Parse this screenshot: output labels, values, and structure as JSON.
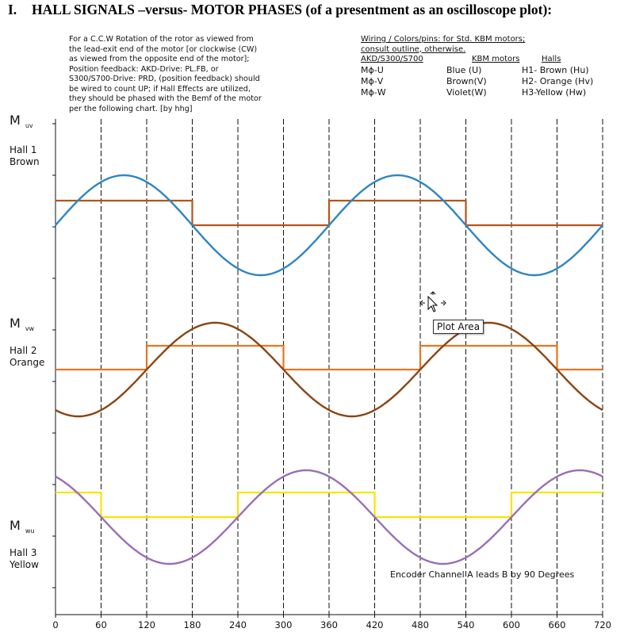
{
  "heading": {
    "number": "I.",
    "text": "HALL SIGNALS –versus- MOTOR PHASES (of a presentment as an oscilloscope plot):"
  },
  "note_lines": [
    "For a C.C.W Rotation of the rotor as viewed from",
    "the lead-exit end of the motor [or clockwise (CW)",
    "as viewed from the opposite end of the motor];",
    "Position feedback: AKD-Drive: PL.FB, or",
    "S300/S700-Drive: PRD, (position feedback) should",
    "be wired to count UP; if Hall Effects are utilized,",
    "they should be phased with the Bemf of the motor",
    "per the following chart. [by hhg]"
  ],
  "wiring": {
    "title_line1": "Wiring / Colors/pins: for Std. KBM motors;",
    "title_line2": "consult outline, otherwise.",
    "header": [
      "AKD/S300/S700",
      "KBM motors",
      "Halls"
    ],
    "rows": [
      [
        "Mϕ-U",
        "Blue (U)",
        "H1- Brown (Hu)"
      ],
      [
        "Mϕ-V",
        "Brown(V)",
        "H2- Orange (Hv)"
      ],
      [
        "Mϕ-W",
        "Violet(W)",
        "H3-Yellow (Hw)"
      ]
    ]
  },
  "tooltip": "Plot Area",
  "chart_data": {
    "type": "line",
    "x_ticks": [
      0,
      60,
      120,
      180,
      240,
      300,
      360,
      420,
      480,
      540,
      600,
      660,
      720
    ],
    "xlim": [
      0,
      720
    ],
    "grid": "vertical dashed lines every 60",
    "annotation": "Encoder Channel A leads B by 90 Degrees",
    "panels": [
      {
        "motor_label": "M",
        "motor_sub": "uv",
        "hall_label": [
          "Hall 1",
          "Brown"
        ],
        "sine": {
          "name": "M uv",
          "color": "#2E86C1",
          "phase_deg": 0,
          "amplitude": 1
        },
        "hall": {
          "name": "Hall 1",
          "color": "#B5541A",
          "high_intervals": [
            [
              0,
              180
            ],
            [
              360,
              540
            ]
          ]
        }
      },
      {
        "motor_label": "M",
        "motor_sub": "vw",
        "hall_label": [
          "Hall 2",
          "Orange"
        ],
        "sine": {
          "name": "M vw",
          "color": "#8B4513",
          "phase_deg": -120,
          "amplitude": 1
        },
        "hall": {
          "name": "Hall 2",
          "color": "#E8761E",
          "high_intervals": [
            [
              120,
              300
            ],
            [
              480,
              660
            ]
          ]
        }
      },
      {
        "motor_label": "M",
        "motor_sub": "wu",
        "hall_label": [
          "Hall 3",
          "Yellow"
        ],
        "sine": {
          "name": "M wu",
          "color": "#9B6FB5",
          "phase_deg": 120,
          "amplitude": 1
        },
        "hall": {
          "name": "Hall 3",
          "color": "#F2E600",
          "high_intervals": [
            [
              0,
              60
            ],
            [
              240,
              420
            ],
            [
              600,
              720
            ]
          ]
        }
      }
    ]
  }
}
